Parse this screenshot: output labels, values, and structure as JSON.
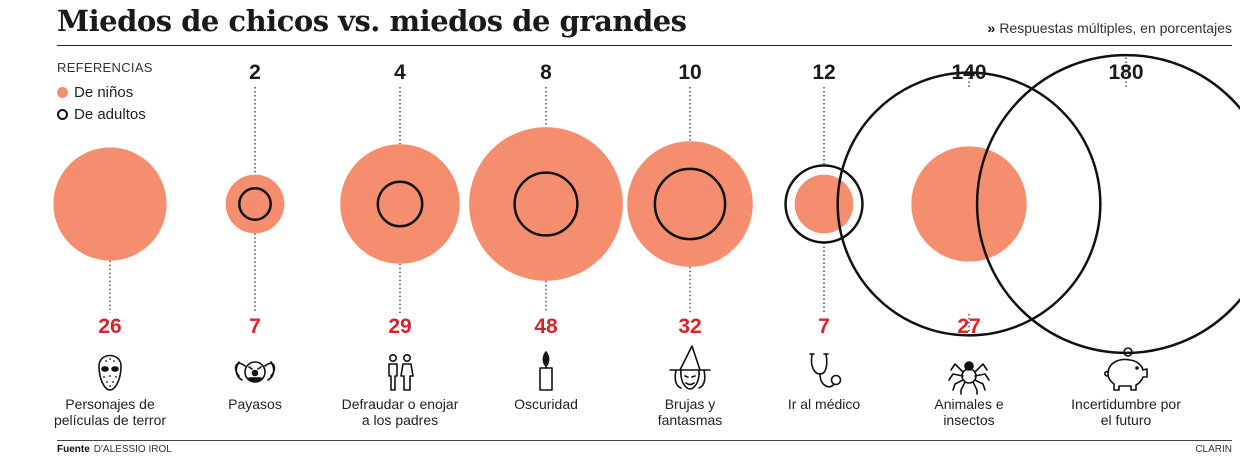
{
  "header": {
    "title": "Miedos de chicos vs. miedos de grandes",
    "subtitle": "Respuestas múltiples, en porcentajes",
    "subtitle_marker": "»"
  },
  "legend": {
    "heading": "REFERENCIAS",
    "kids_label": "De niños",
    "adults_label": "De adultos"
  },
  "footer": {
    "source_label": "Fuente",
    "source_value": "D'ALESSIO IROL",
    "credit": "CLARIN"
  },
  "colors": {
    "kids": "#f58e6e",
    "adults_stroke": "#111111",
    "kids_value_text": "#d8232a"
  },
  "chart_data": {
    "type": "bubble",
    "title": "Miedos de chicos vs. miedos de grandes",
    "subtitle": "Respuestas múltiples, en porcentajes",
    "series": [
      {
        "name": "De niños",
        "style": "filled",
        "values": [
          26,
          7,
          29,
          48,
          32,
          7,
          27,
          null
        ]
      },
      {
        "name": "De adultos",
        "style": "outline",
        "values": [
          null,
          2,
          4,
          8,
          10,
          12,
          140,
          180
        ]
      }
    ],
    "categories": [
      {
        "label_lines": [
          "Personajes de",
          "películas de terror"
        ],
        "icon": "hockey-mask-icon",
        "adults_value_label": "",
        "kids_value_label": "26"
      },
      {
        "label_lines": [
          "Payasos"
        ],
        "icon": "clown-icon",
        "adults_value_label": "2",
        "kids_value_label": "7"
      },
      {
        "label_lines": [
          "Defraudar o enojar",
          "a los padres"
        ],
        "icon": "parents-icon",
        "adults_value_label": "4",
        "kids_value_label": "29"
      },
      {
        "label_lines": [
          "Oscuridad"
        ],
        "icon": "candle-icon",
        "adults_value_label": "8",
        "kids_value_label": "48"
      },
      {
        "label_lines": [
          "Brujas y",
          "fantasmas"
        ],
        "icon": "witch-icon",
        "adults_value_label": "10",
        "kids_value_label": "32"
      },
      {
        "label_lines": [
          "Ir al médico"
        ],
        "icon": "stethoscope-icon",
        "adults_value_label": "12",
        "kids_value_label": "7"
      },
      {
        "label_lines": [
          "Animales e",
          "insectos"
        ],
        "icon": "spider-icon",
        "adults_value_label": "140",
        "kids_value_label": "27"
      },
      {
        "label_lines": [
          "Incertidumbre por",
          "el futuro"
        ],
        "icon": "piggy-bank-icon",
        "adults_value_label": "180",
        "kids_value_label": ""
      }
    ]
  }
}
